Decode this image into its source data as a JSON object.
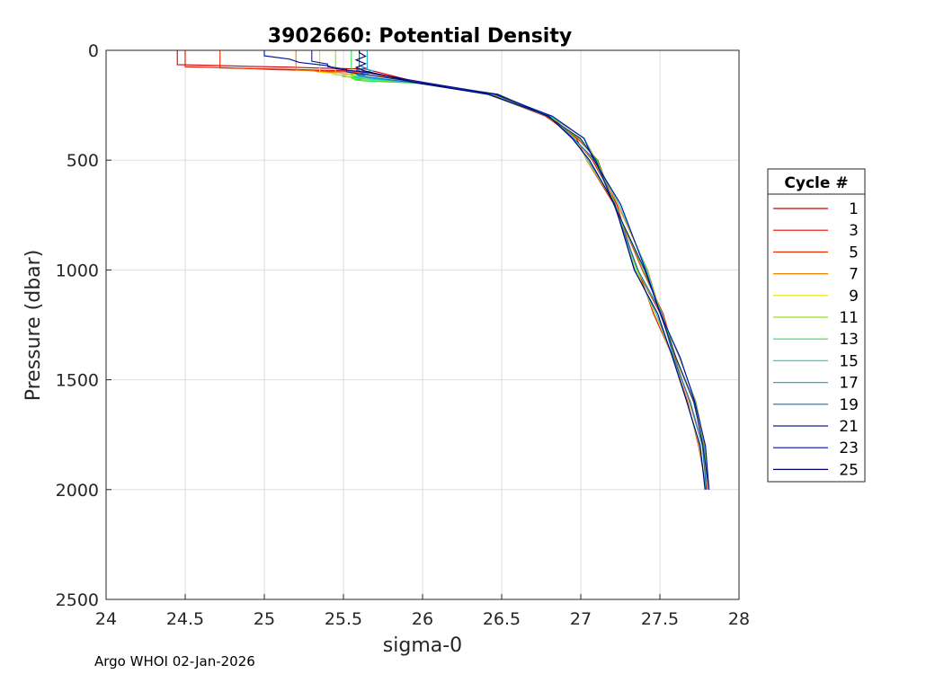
{
  "chart_data": {
    "type": "line",
    "title": "3902660: Potential Density",
    "xlabel": "sigma-0",
    "ylabel": "Pressure (dbar)",
    "xlim": [
      24,
      28
    ],
    "ylim": [
      0,
      2500
    ],
    "y_reversed": true,
    "grid": true,
    "x_ticks": [
      "24",
      "24.5",
      "25",
      "25.5",
      "26",
      "26.5",
      "27",
      "27.5",
      "28"
    ],
    "y_ticks": [
      "0",
      "500",
      "1000",
      "1500",
      "2000",
      "2500"
    ],
    "legend": {
      "title": "Cycle #",
      "placement": "right",
      "entries": [
        {
          "label": "1",
          "color": "#cc0000"
        },
        {
          "label": "3",
          "color": "#dd1100"
        },
        {
          "label": "5",
          "color": "#e83000"
        },
        {
          "label": "7",
          "color": "#f08000"
        },
        {
          "label": "9",
          "color": "#f0e000"
        },
        {
          "label": "11",
          "color": "#90e020"
        },
        {
          "label": "13",
          "color": "#30e040"
        },
        {
          "label": "15",
          "color": "#20d8c8"
        },
        {
          "label": "17",
          "color": "#20b0e0"
        },
        {
          "label": "19",
          "color": "#1070c0"
        },
        {
          "label": "21",
          "color": "#102080"
        },
        {
          "label": "23",
          "color": "#0010a0"
        },
        {
          "label": "25",
          "color": "#000070"
        }
      ]
    },
    "series": [
      {
        "name": "1",
        "color": "#cc0000",
        "sigma_surface": 24.45,
        "mix_depth": 65,
        "drop": 85
      },
      {
        "name": "3",
        "color": "#dd1100",
        "sigma_surface": 24.5,
        "mix_depth": 75,
        "drop": 95
      },
      {
        "name": "5",
        "color": "#e83000",
        "sigma_surface": 24.72,
        "mix_depth": 80,
        "drop": 100
      },
      {
        "name": "7",
        "color": "#f08000",
        "sigma_surface": 25.2,
        "mix_depth": 90,
        "drop": 110
      },
      {
        "name": "9",
        "color": "#f0e000",
        "sigma_surface": 25.35,
        "mix_depth": 100,
        "drop": 125
      },
      {
        "name": "11",
        "color": "#90e020",
        "sigma_surface": 25.45,
        "mix_depth": 110,
        "drop": 135
      },
      {
        "name": "13",
        "color": "#30e040",
        "sigma_surface": 25.55,
        "mix_depth": 115,
        "drop": 140
      },
      {
        "name": "15",
        "color": "#20d8c8",
        "sigma_surface": 25.6,
        "mix_depth": 95,
        "drop": 130
      },
      {
        "name": "17",
        "color": "#20b0e0",
        "sigma_surface": 25.65,
        "mix_depth": 85,
        "drop": 125
      },
      {
        "name": "19",
        "color": "#1070c0",
        "sigma_surface": 25.6,
        "mix_depth": 70,
        "drop": 120
      },
      {
        "name": "21",
        "color": "#102080",
        "sigma_surface": 25.3,
        "mix_depth": 50,
        "drop": 110
      },
      {
        "name": "23",
        "color": "#0010a0",
        "sigma_surface": 25.0,
        "mix_depth": 25,
        "drop": 100
      },
      {
        "name": "25",
        "color": "#000070",
        "sigma_surface": 25.6,
        "mix_depth": 10,
        "drop": 95
      }
    ],
    "deep_profile": {
      "pressure": [
        150,
        200,
        300,
        400,
        500,
        700,
        1000,
        1200,
        1400,
        1600,
        1800,
        2000
      ],
      "sigma": [
        26.0,
        26.45,
        26.8,
        26.98,
        27.08,
        27.22,
        27.38,
        27.5,
        27.6,
        27.7,
        27.77,
        27.81
      ]
    }
  },
  "footer": "Argo WHOI 02-Jan-2026"
}
